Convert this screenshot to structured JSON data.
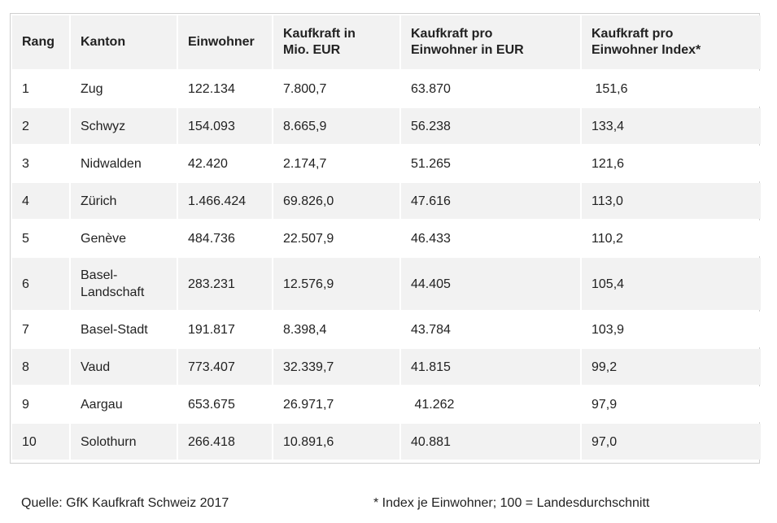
{
  "table": {
    "headers": [
      "Rang",
      "Kanton",
      "Einwohner",
      "Kaufkraft in\nMio. EUR",
      "Kaufkraft pro\nEinwohner in EUR",
      "Kaufkraft pro\nEinwohner Index*"
    ],
    "rows": [
      {
        "rang": "1",
        "kanton": "Zug",
        "einwohner": "122.134",
        "kaufkraft_mio": "7.800,7",
        "pro_einwohner": "63.870",
        "index": " 151,6"
      },
      {
        "rang": "2",
        "kanton": "Schwyz",
        "einwohner": "154.093",
        "kaufkraft_mio": "8.665,9",
        "pro_einwohner": "56.238",
        "index": "133,4"
      },
      {
        "rang": "3",
        "kanton": "Nidwalden",
        "einwohner": "42.420",
        "kaufkraft_mio": "2.174,7",
        "pro_einwohner": "51.265",
        "index": "121,6"
      },
      {
        "rang": "4",
        "kanton": "Zürich",
        "einwohner": "1.466.424",
        "kaufkraft_mio": "69.826,0",
        "pro_einwohner": "47.616",
        "index": "113,0"
      },
      {
        "rang": "5",
        "kanton": "Genève",
        "einwohner": "484.736",
        "kaufkraft_mio": "22.507,9",
        "pro_einwohner": "46.433",
        "index": "110,2"
      },
      {
        "rang": "6",
        "kanton": "Basel-\nLandschaft",
        "einwohner": "283.231",
        "kaufkraft_mio": "12.576,9",
        "pro_einwohner": "44.405",
        "index": "105,4"
      },
      {
        "rang": "7",
        "kanton": "Basel-Stadt",
        "einwohner": "191.817",
        "kaufkraft_mio": "8.398,4",
        "pro_einwohner": "43.784",
        "index": "103,9"
      },
      {
        "rang": "8",
        "kanton": "Vaud",
        "einwohner": "773.407",
        "kaufkraft_mio": "32.339,7",
        "pro_einwohner": "41.815",
        "index": "99,2"
      },
      {
        "rang": "9",
        "kanton": "Aargau",
        "einwohner": "653.675",
        "kaufkraft_mio": "26.971,7",
        "pro_einwohner": " 41.262",
        "index": "97,9"
      },
      {
        "rang": "10",
        "kanton": "Solothurn",
        "einwohner": "266.418",
        "kaufkraft_mio": "10.891,6",
        "pro_einwohner": "40.881",
        "index": "97,0"
      }
    ]
  },
  "footer": {
    "source": "Quelle: GfK Kaufkraft Schweiz 2017",
    "note": "* Index je Einwohner; 100 = Landesdurchschnitt"
  }
}
